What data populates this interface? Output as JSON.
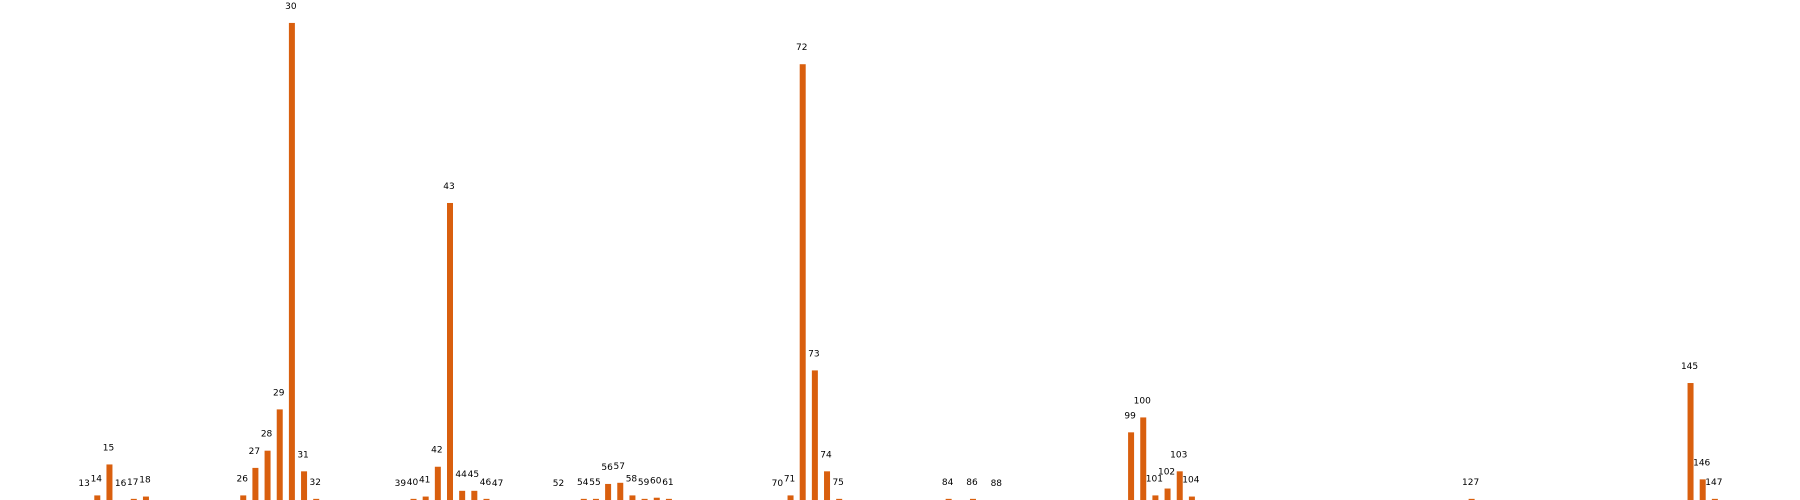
{
  "chart_data": {
    "type": "bar",
    "color": "#d95f0e",
    "x": [
      13,
      14,
      15,
      16,
      17,
      18,
      26,
      27,
      28,
      29,
      30,
      31,
      32,
      39,
      40,
      41,
      42,
      43,
      44,
      45,
      46,
      47,
      52,
      54,
      55,
      56,
      57,
      58,
      59,
      60,
      61,
      70,
      71,
      72,
      73,
      74,
      75,
      84,
      86,
      88,
      99,
      100,
      101,
      102,
      103,
      104,
      127,
      145,
      146,
      147
    ],
    "values": [
      0,
      4,
      31,
      0,
      1,
      3,
      4,
      28,
      43,
      79,
      416,
      25,
      1,
      0,
      1,
      3,
      29,
      259,
      8,
      8,
      1,
      0,
      0,
      1,
      1,
      14,
      15,
      4,
      1,
      2,
      1,
      0,
      4,
      380,
      113,
      25,
      1,
      1,
      1,
      0,
      59,
      72,
      4,
      10,
      25,
      3,
      1,
      102,
      18,
      1
    ],
    "xlim": [
      6,
      154
    ],
    "ylim": [
      0,
      436
    ]
  }
}
